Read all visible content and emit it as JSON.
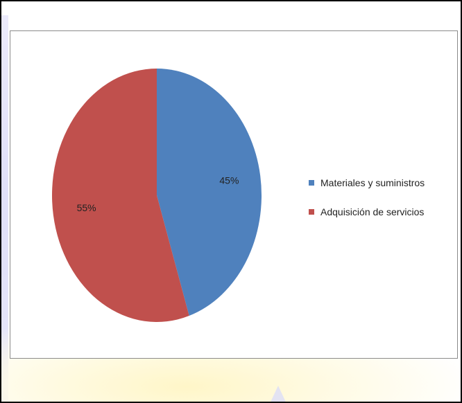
{
  "chart_data": {
    "type": "pie",
    "title": "",
    "categories": [
      "Materiales y suministros",
      "Adquisición de servicios"
    ],
    "values": [
      45,
      55
    ],
    "data_labels": [
      "45%",
      "55%"
    ],
    "colors": [
      "#4f81bd",
      "#c0504d"
    ],
    "legend_position": "right"
  }
}
